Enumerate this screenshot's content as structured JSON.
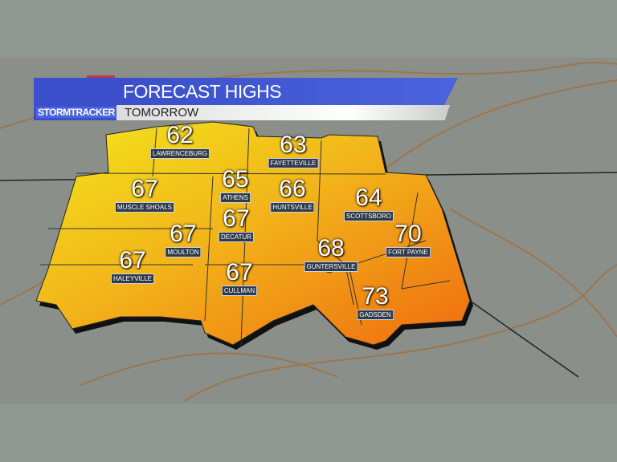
{
  "header": {
    "title": "FORECAST HIGHS",
    "subtitle": "TOMORROW",
    "brand": "STORMTRACKER"
  },
  "colors": {
    "banner": "#3a4fc9",
    "cool": "#f2e31a",
    "warm": "#f07a12"
  },
  "cities": [
    {
      "name": "LAWRENCEBURG",
      "temp": "62"
    },
    {
      "name": "FAYETTEVILLE",
      "temp": "63"
    },
    {
      "name": "ATHENS",
      "temp": "65"
    },
    {
      "name": "HUNTSVILLE",
      "temp": "66"
    },
    {
      "name": "MUSCLE SHOALS",
      "temp": "67"
    },
    {
      "name": "SCOTTSBORO",
      "temp": "64"
    },
    {
      "name": "DECATUR",
      "temp": "67"
    },
    {
      "name": "MOULTON",
      "temp": "67"
    },
    {
      "name": "FORT PAYNE",
      "temp": "70"
    },
    {
      "name": "GUNTERSVILLE",
      "temp": "68"
    },
    {
      "name": "HALEYVILLE",
      "temp": "67"
    },
    {
      "name": "CULLMAN",
      "temp": "67"
    },
    {
      "name": "GADSDEN",
      "temp": "73"
    }
  ]
}
